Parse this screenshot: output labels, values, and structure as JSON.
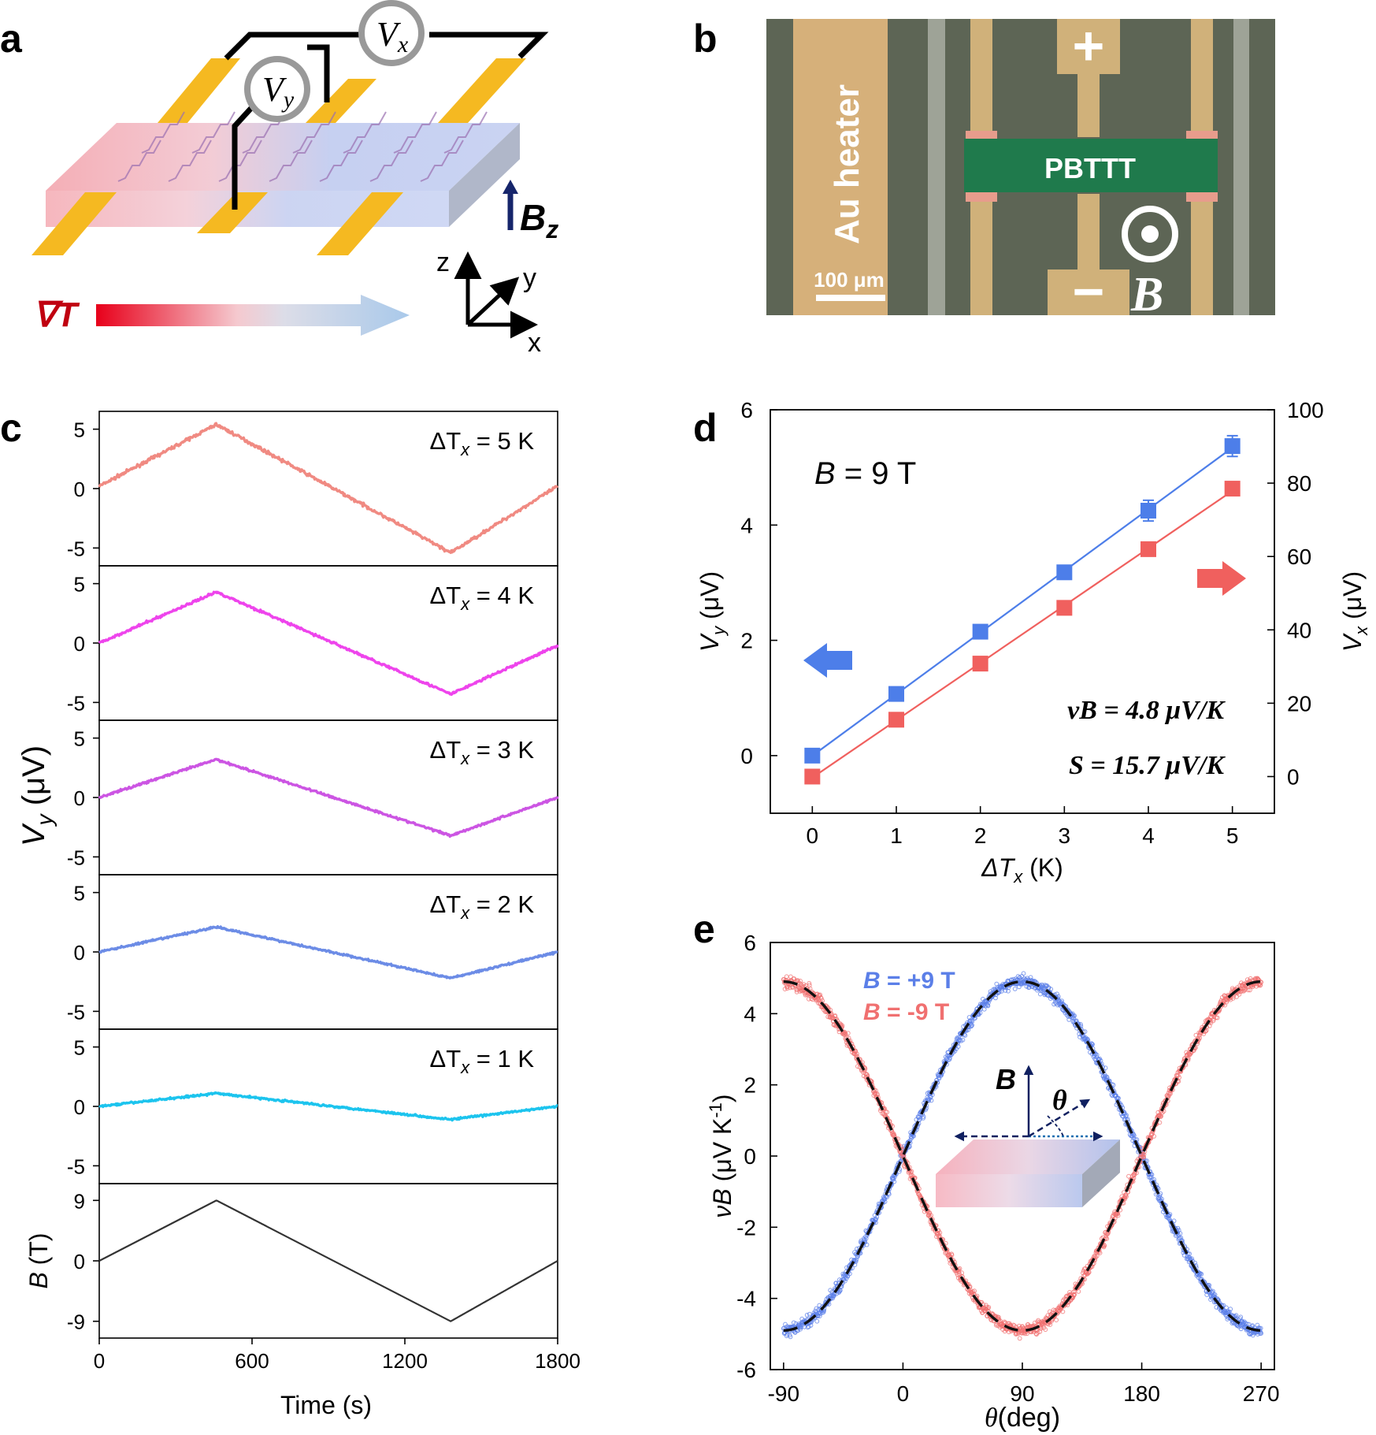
{
  "panels": {
    "a": "a",
    "b": "b",
    "c": "c",
    "d": "d",
    "e": "e"
  },
  "panel_a": {
    "vx_label": "V",
    "vx_sub": "x",
    "vy_label": "V",
    "vy_sub": "y",
    "bz_label": "B",
    "bz_sub": "z",
    "grad_label": "∇T",
    "axes": {
      "z": "z",
      "y": "y",
      "x": "x"
    },
    "colors": {
      "contact": "#f5b921",
      "hot": "#f4a8b0",
      "cold": "#b9c8ee",
      "arrow_start": "#e8001a",
      "arrow_end": "#a9c9ea",
      "bz_arrow": "#16256b"
    }
  },
  "panel_b": {
    "heater": "Au heater",
    "channel": "PBTTT",
    "plus": "+",
    "minus": "−",
    "field": "B",
    "scalebar": "100 μm",
    "colors": {
      "substrate": "#606856",
      "gold": "#d8b27a",
      "channel": "#1f7a4c"
    }
  },
  "chart_data": [
    {
      "panel": "c",
      "type": "line",
      "xlabel": "Time (s)",
      "xlim": [
        0,
        1800
      ],
      "xticks": [
        0,
        600,
        1200,
        1800
      ],
      "shared_ylabel": {
        "main": "V",
        "sub": "y",
        "unit": " (μV)"
      },
      "series": [
        {
          "name": "ΔT_x = 5 K",
          "label_main": "ΔT",
          "label_sub": "x",
          "label_rest": " = 5 K",
          "color": "#f08a82",
          "x": [
            0,
            460,
            1380,
            1800
          ],
          "y": [
            0.2,
            5.4,
            -5.4,
            0.2
          ],
          "ylim": [
            -6.5,
            6.5
          ],
          "yticks": [
            5,
            0,
            -5
          ],
          "noise": 0.13
        },
        {
          "name": "ΔT_x = 4 K",
          "label_main": "ΔT",
          "label_sub": "x",
          "label_rest": " = 4 K",
          "color": "#ee44ec",
          "x": [
            0,
            460,
            1380,
            1800
          ],
          "y": [
            0,
            4.3,
            -4.3,
            -0.2
          ],
          "ylim": [
            -6.5,
            6.5
          ],
          "yticks": [
            5,
            0,
            -5
          ],
          "noise": 0.1
        },
        {
          "name": "ΔT_x = 3 K",
          "label_main": "ΔT",
          "label_sub": "x",
          "label_rest": " = 3 K",
          "color": "#cc55e3",
          "x": [
            0,
            460,
            1380,
            1800
          ],
          "y": [
            0,
            3.2,
            -3.2,
            0
          ],
          "ylim": [
            -6.5,
            6.5
          ],
          "yticks": [
            5,
            0,
            -5
          ],
          "noise": 0.09
        },
        {
          "name": "ΔT_x = 2 K",
          "label_main": "ΔT",
          "label_sub": "x",
          "label_rest": " = 2 K",
          "color": "#6c8ce6",
          "x": [
            0,
            460,
            1380,
            1800
          ],
          "y": [
            0,
            2.1,
            -2.2,
            0
          ],
          "ylim": [
            -6.5,
            6.5
          ],
          "yticks": [
            5,
            0,
            -5
          ],
          "noise": 0.08
        },
        {
          "name": "ΔT_x = 1 K",
          "label_main": "ΔT",
          "label_sub": "x",
          "label_rest": " = 1 K",
          "color": "#1cc4ee",
          "x": [
            0,
            460,
            1380,
            1800
          ],
          "y": [
            0,
            1.1,
            -1.1,
            0
          ],
          "ylim": [
            -6.5,
            6.5
          ],
          "yticks": [
            5,
            0,
            -5
          ],
          "noise": 0.08
        },
        {
          "name": "B (T)",
          "label_main": "",
          "label_sub": "",
          "label_rest": "",
          "ylabel_main": "B",
          "ylabel_unit": " (T)",
          "color": "#333333",
          "x": [
            0,
            460,
            1380,
            1800
          ],
          "y": [
            0,
            9,
            -9,
            0
          ],
          "ylim": [
            -11.5,
            11.5
          ],
          "yticks": [
            9,
            0,
            -9
          ],
          "noise": 0
        }
      ]
    },
    {
      "panel": "d",
      "type": "scatter",
      "annotation": {
        "main": "B",
        "rest": " = 9 T"
      },
      "xlabel": {
        "main": "ΔT",
        "sub": "x",
        "rest": " (K)"
      },
      "ylabel_left": {
        "main": "V",
        "sub": "y",
        "rest": " (μV)"
      },
      "ylabel_right": {
        "main": "V",
        "sub": "x",
        "rest": " (μV)"
      },
      "xlim": [
        -0.5,
        5.5
      ],
      "xticks": [
        0,
        1,
        2,
        3,
        4,
        5
      ],
      "ylim_left": [
        -1,
        6
      ],
      "yticks_left": [
        0,
        2,
        4,
        6
      ],
      "ylim_right": [
        -10,
        100
      ],
      "yticks_right": [
        0,
        20,
        40,
        60,
        80,
        100
      ],
      "eq1": "νB = 4.8 μV/K",
      "eq2": "S = 15.7 μV/K",
      "series": [
        {
          "name": "V_y",
          "axis": "left",
          "color": "#4d7ee9",
          "x": [
            0,
            1,
            2,
            3,
            4,
            5
          ],
          "y": [
            0,
            1.07,
            2.15,
            3.18,
            4.25,
            5.37
          ],
          "err": [
            0.05,
            0.08,
            0.07,
            0.12,
            0.18,
            0.18
          ]
        },
        {
          "name": "V_x",
          "axis": "right",
          "color": "#f0605e",
          "x": [
            0,
            1,
            2,
            3,
            4,
            5
          ],
          "y": [
            0,
            15.5,
            30.8,
            46,
            62,
            78.5
          ],
          "err": [
            0,
            0,
            0,
            0,
            0,
            0
          ]
        }
      ]
    },
    {
      "panel": "e",
      "type": "scatter",
      "xlabel": {
        "main": "θ",
        "rest": "(deg)"
      },
      "ylabel": {
        "main": "νB",
        "rest": " (μV K",
        "sup": "-1",
        "end": ")"
      },
      "xlim": [
        -100,
        280
      ],
      "xticks": [
        -90,
        0,
        90,
        180,
        270
      ],
      "ylim": [
        -6,
        6
      ],
      "yticks": [
        -6,
        -4,
        -2,
        0,
        2,
        4,
        6
      ],
      "amplitude": 4.9,
      "series": [
        {
          "name": "B = +9 T",
          "legend_main": "B",
          "legend_rest": " = +9 T",
          "color": "#5b7fe8",
          "sign": 1
        },
        {
          "name": "B = -9 T",
          "legend_main": "B",
          "legend_rest": " = -9 T",
          "color": "#f07070",
          "sign": -1
        }
      ],
      "inset": {
        "field": "B",
        "angle": "θ"
      }
    }
  ]
}
